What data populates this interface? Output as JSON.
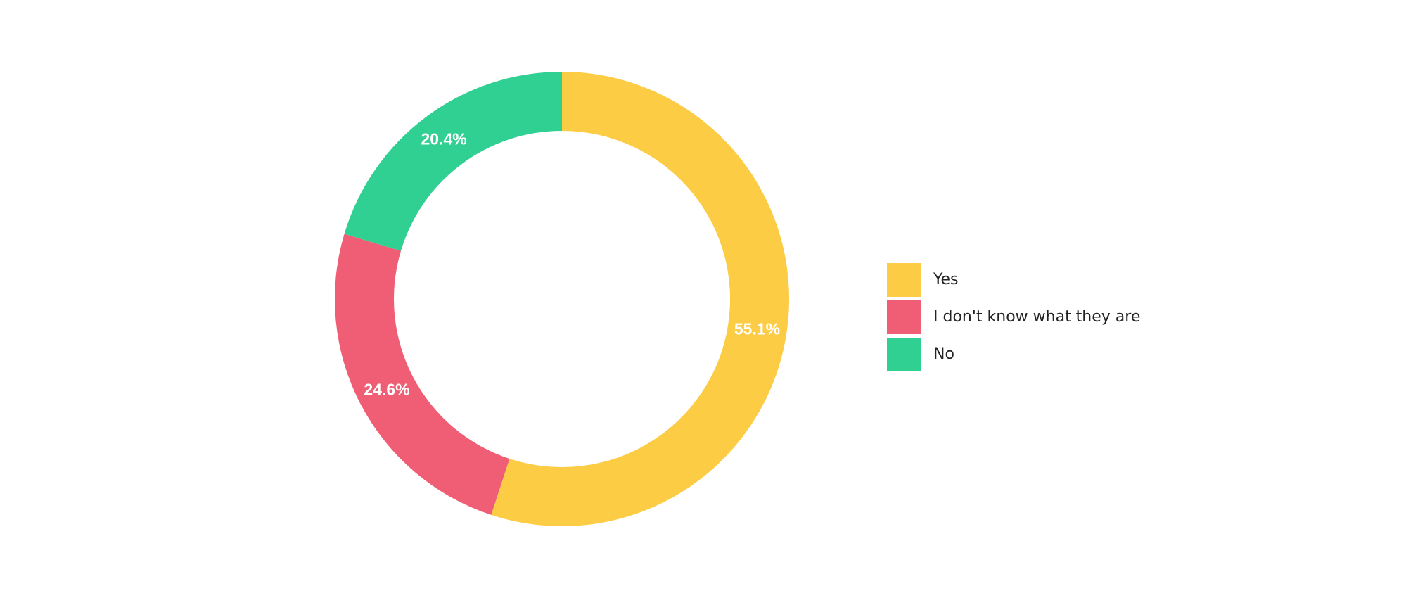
{
  "chart_data": {
    "type": "donut",
    "categories": [
      "Yes",
      "I don't know what they are",
      "No"
    ],
    "values": [
      55.1,
      24.6,
      20.4
    ],
    "value_labels": [
      "55.1%",
      "24.6%",
      "20.4%"
    ],
    "colors": [
      "#fccc45",
      "#f05e76",
      "#30cf92"
    ],
    "legend": "right"
  }
}
